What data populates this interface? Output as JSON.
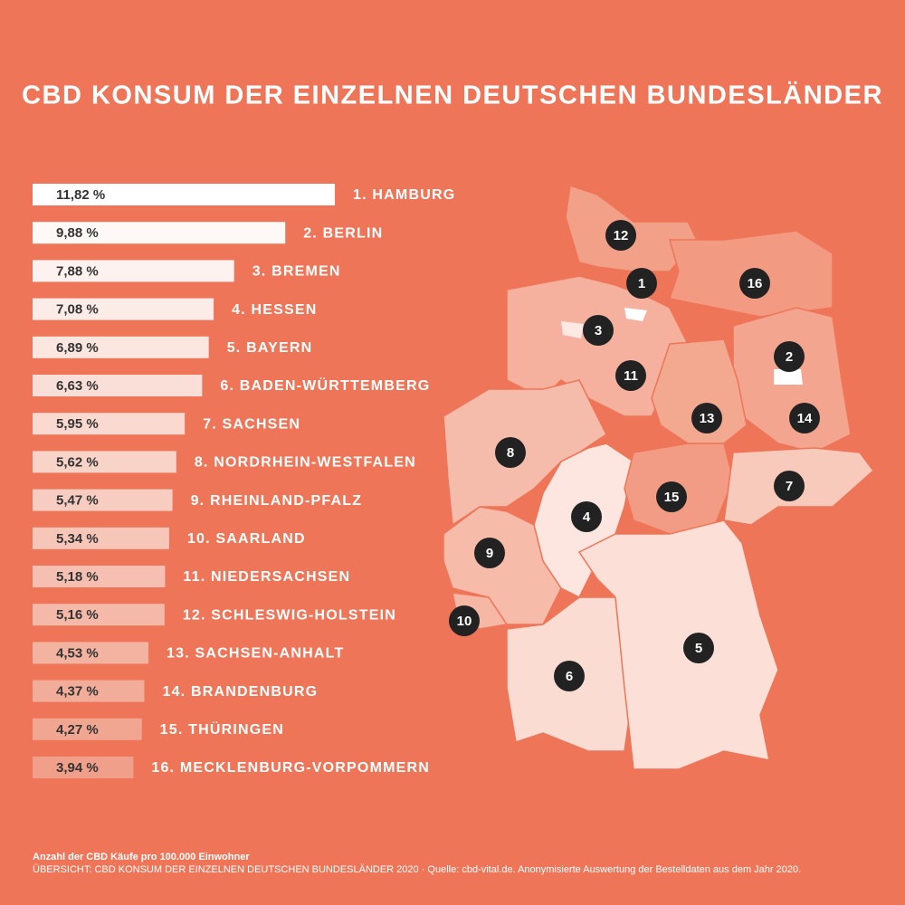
{
  "chart_data": {
    "type": "bar",
    "orientation": "horizontal",
    "title": "CBD KONSUM DER EINZELNEN DEUTSCHEN BUNDESLÄNDER",
    "categories": [
      "1. HAMBURG",
      "2. BERLIN",
      "3. BREMEN",
      "4. HESSEN",
      "5. BAYERN",
      "6. BADEN-WÜRTTEMBERG",
      "7. SACHSEN",
      "8. NORDRHEIN-WESTFALEN",
      "9. RHEINLAND-PFALZ",
      "10. SAARLAND",
      "11. NIEDERSACHSEN",
      "12. SCHLESWIG-HOLSTEIN",
      "13. SACHSEN-ANHALT",
      "14. BRANDENBURG",
      "15. THÜRINGEN",
      "16. MECKLENBURG-VORPOMMERN"
    ],
    "values": [
      11.82,
      9.88,
      7.88,
      7.08,
      6.89,
      6.63,
      5.95,
      5.62,
      5.47,
      5.34,
      5.18,
      5.16,
      4.53,
      4.37,
      4.27,
      3.94
    ],
    "value_labels": [
      "11,82 %",
      "9,88 %",
      "7,88 %",
      "7,08 %",
      "6,89 %",
      "6,63 %",
      "5,95 %",
      "5,62 %",
      "5,47 %",
      "5,34 %",
      "5,18 %",
      "5,16 %",
      "4,53 %",
      "4,37 %",
      "4,27 %",
      "3,94 %"
    ],
    "map_markers": [
      "12",
      "1",
      "16",
      "3",
      "2",
      "11",
      "13",
      "14",
      "8",
      "7",
      "15",
      "4",
      "9",
      "10",
      "5",
      "6"
    ],
    "footnote": "Anzahl der CBD Käufe pro 100.000 Einwohner",
    "source": "ÜBERSICHT: CBD KONSUM DER EINZELNEN DEUTSCHEN BUNDESLÄNDER 2020 · Quelle: cbd-vital.de. Anonymisierte Auswertung der Bestelldaten aus dem Jahr 2020."
  }
}
